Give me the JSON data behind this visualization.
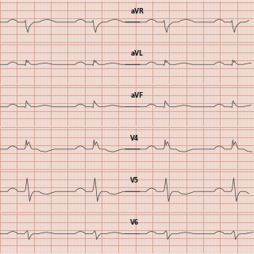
{
  "background_color": "#f2e0d8",
  "grid_major_color": "#d4998a",
  "grid_minor_color": "#e8c4bc",
  "line_color": "#4a4a4a",
  "label_color": "#1a1a1a",
  "label_fontsize": 5.5,
  "fig_bg": "#f2e0d8",
  "leads": [
    "aVR",
    "aVL",
    "aVF",
    "V4",
    "V5",
    "V6"
  ],
  "highlight_row": 3,
  "highlight_color": "#f5e8d0",
  "border_color": "#c08070"
}
